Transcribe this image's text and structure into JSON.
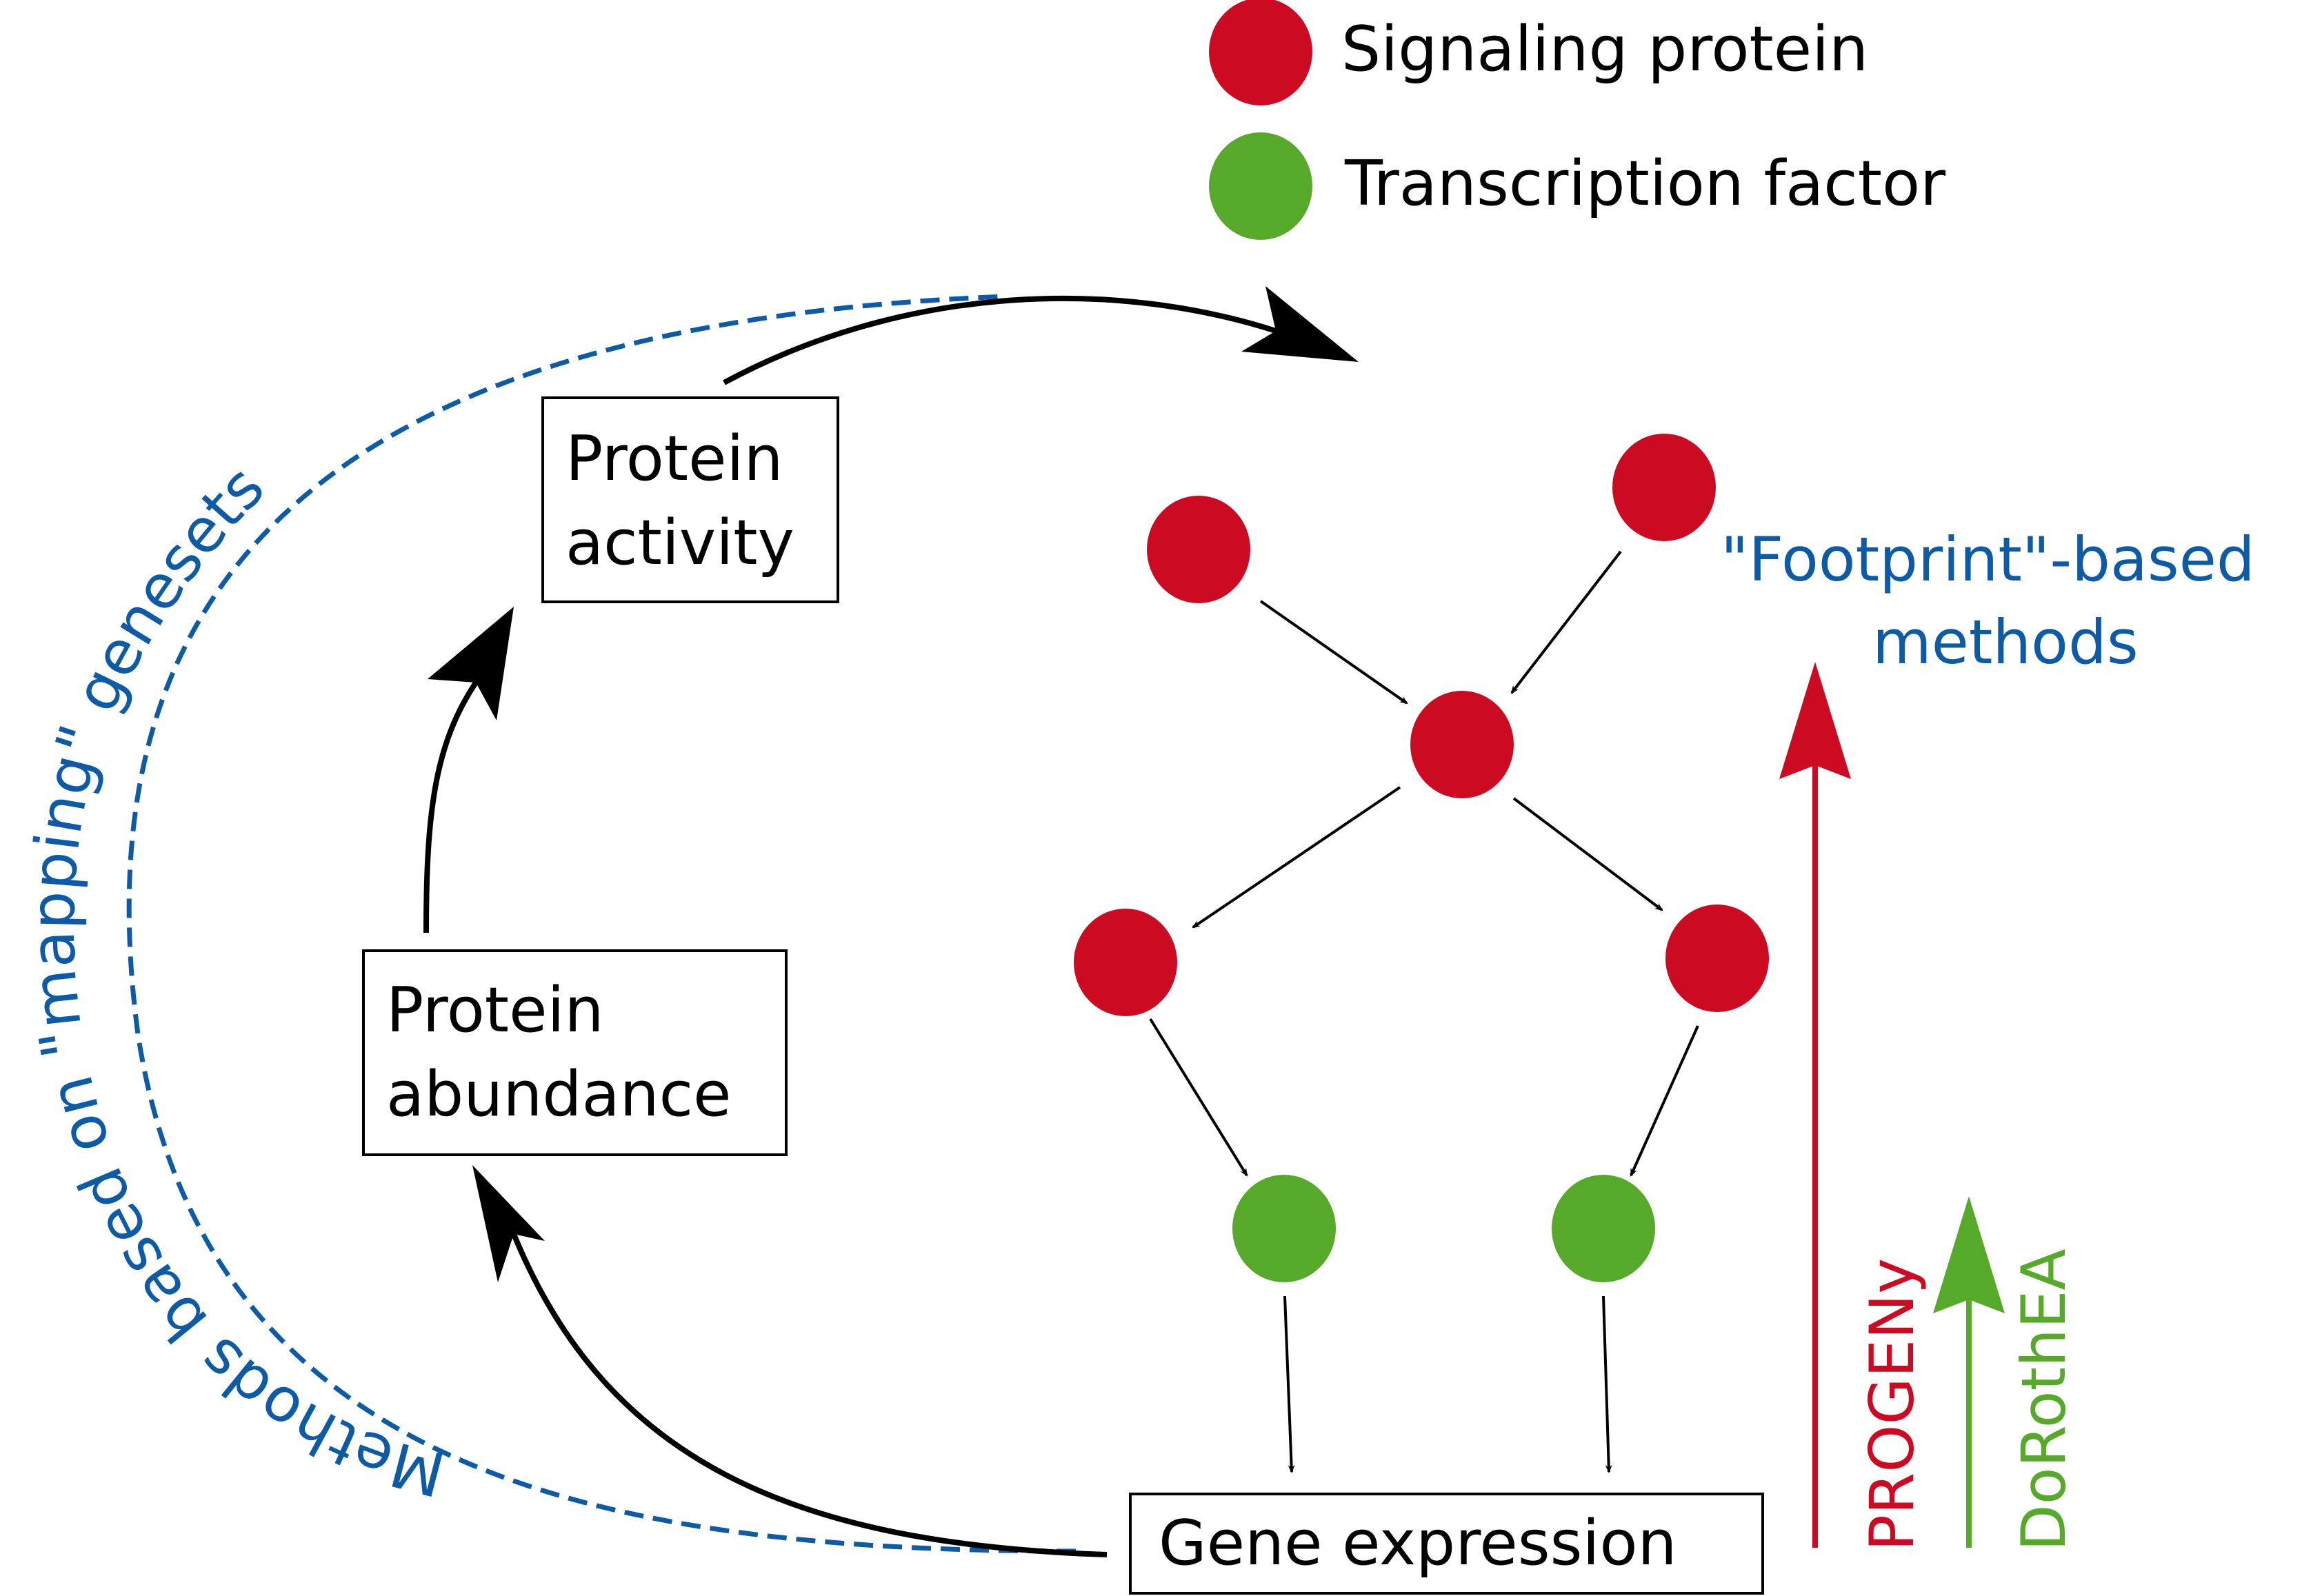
{
  "legend": {
    "signaling": {
      "label": "Signaling protein",
      "color": "#cc0a22"
    },
    "tf": {
      "label": "Transcription factor",
      "color": "#57a92a"
    }
  },
  "boxes": {
    "protein_activity": [
      "Protein",
      "activity"
    ],
    "protein_abundance": [
      "Protein",
      "abundance"
    ],
    "gene_expression": "Gene expression"
  },
  "labels": {
    "footprint": [
      "\"Footprint\"-based",
      "methods"
    ],
    "mapping": "Methods based on \"mapping\" genesets",
    "progeny": "PROGENy",
    "dorothea": "DoRothEA"
  },
  "colors": {
    "blue": "#0d5aa7",
    "progeny": "#cc0a22",
    "dorothea": "#57a92a"
  }
}
